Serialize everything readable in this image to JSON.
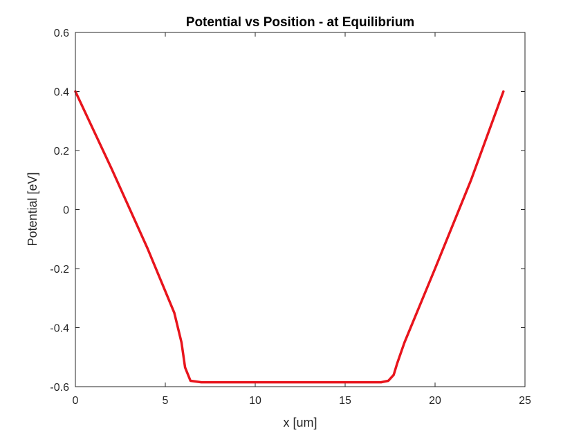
{
  "chart_data": {
    "type": "line",
    "title": "Potential vs Position - at Equilibrium",
    "xlabel": "x [um]",
    "ylabel": "Potential [eV]",
    "xlim": [
      0,
      25
    ],
    "ylim": [
      -0.6,
      0.6
    ],
    "xticks": [
      0,
      5,
      10,
      15,
      20,
      25
    ],
    "xtick_labels": [
      "0",
      "5",
      "10",
      "15",
      "20",
      "25"
    ],
    "yticks": [
      -0.6,
      -0.4,
      -0.2,
      0,
      0.2,
      0.4,
      0.6
    ],
    "ytick_labels": [
      "-0.6",
      "-0.4",
      "-0.2",
      "0",
      "0.2",
      "0.4",
      "0.6"
    ],
    "grid": false,
    "series": [
      {
        "color": "#e8141c",
        "x": [
          0,
          2,
          4,
          5.5,
          5.9,
          6.1,
          6.4,
          7,
          10,
          14,
          17,
          17.4,
          17.7,
          17.9,
          18.3,
          20,
          22,
          23.8
        ],
        "y": [
          0.4,
          0.14,
          -0.13,
          -0.35,
          -0.45,
          -0.535,
          -0.58,
          -0.585,
          -0.585,
          -0.585,
          -0.585,
          -0.58,
          -0.56,
          -0.52,
          -0.45,
          -0.2,
          0.1,
          0.4
        ]
      }
    ]
  }
}
